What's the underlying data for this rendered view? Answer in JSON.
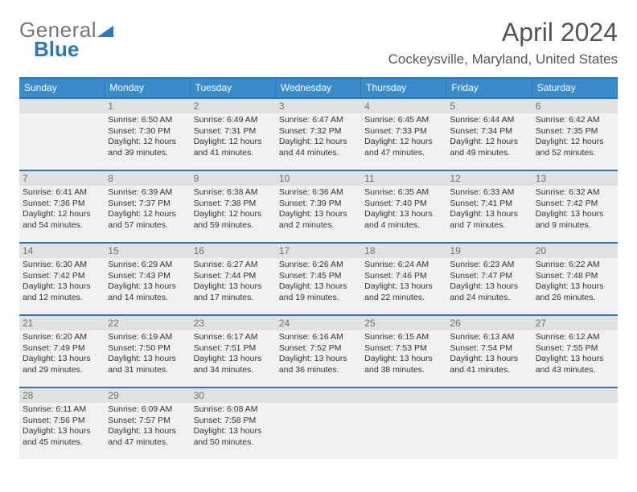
{
  "logo": {
    "part1": "General",
    "part2": "Blue"
  },
  "title": "April 2024",
  "subtitle": "Cockeysville, Maryland, United States",
  "colors": {
    "accent": "#2d77b8",
    "header_bg": "#3a8bc9",
    "cell_bg": "#f1f1f1",
    "num_bg": "#e1e1e1",
    "text": "#333333",
    "muted": "#707070"
  },
  "dayNames": [
    "Sunday",
    "Monday",
    "Tuesday",
    "Wednesday",
    "Thursday",
    "Friday",
    "Saturday"
  ],
  "firstWeekdayOffset": 1,
  "days": [
    {
      "n": 1,
      "sunrise": "6:50 AM",
      "sunset": "7:30 PM",
      "daylight": "12 hours and 39 minutes."
    },
    {
      "n": 2,
      "sunrise": "6:49 AM",
      "sunset": "7:31 PM",
      "daylight": "12 hours and 41 minutes."
    },
    {
      "n": 3,
      "sunrise": "6:47 AM",
      "sunset": "7:32 PM",
      "daylight": "12 hours and 44 minutes."
    },
    {
      "n": 4,
      "sunrise": "6:45 AM",
      "sunset": "7:33 PM",
      "daylight": "12 hours and 47 minutes."
    },
    {
      "n": 5,
      "sunrise": "6:44 AM",
      "sunset": "7:34 PM",
      "daylight": "12 hours and 49 minutes."
    },
    {
      "n": 6,
      "sunrise": "6:42 AM",
      "sunset": "7:35 PM",
      "daylight": "12 hours and 52 minutes."
    },
    {
      "n": 7,
      "sunrise": "6:41 AM",
      "sunset": "7:36 PM",
      "daylight": "12 hours and 54 minutes."
    },
    {
      "n": 8,
      "sunrise": "6:39 AM",
      "sunset": "7:37 PM",
      "daylight": "12 hours and 57 minutes."
    },
    {
      "n": 9,
      "sunrise": "6:38 AM",
      "sunset": "7:38 PM",
      "daylight": "12 hours and 59 minutes."
    },
    {
      "n": 10,
      "sunrise": "6:36 AM",
      "sunset": "7:39 PM",
      "daylight": "13 hours and 2 minutes."
    },
    {
      "n": 11,
      "sunrise": "6:35 AM",
      "sunset": "7:40 PM",
      "daylight": "13 hours and 4 minutes."
    },
    {
      "n": 12,
      "sunrise": "6:33 AM",
      "sunset": "7:41 PM",
      "daylight": "13 hours and 7 minutes."
    },
    {
      "n": 13,
      "sunrise": "6:32 AM",
      "sunset": "7:42 PM",
      "daylight": "13 hours and 9 minutes."
    },
    {
      "n": 14,
      "sunrise": "6:30 AM",
      "sunset": "7:42 PM",
      "daylight": "13 hours and 12 minutes."
    },
    {
      "n": 15,
      "sunrise": "6:29 AM",
      "sunset": "7:43 PM",
      "daylight": "13 hours and 14 minutes."
    },
    {
      "n": 16,
      "sunrise": "6:27 AM",
      "sunset": "7:44 PM",
      "daylight": "13 hours and 17 minutes."
    },
    {
      "n": 17,
      "sunrise": "6:26 AM",
      "sunset": "7:45 PM",
      "daylight": "13 hours and 19 minutes."
    },
    {
      "n": 18,
      "sunrise": "6:24 AM",
      "sunset": "7:46 PM",
      "daylight": "13 hours and 22 minutes."
    },
    {
      "n": 19,
      "sunrise": "6:23 AM",
      "sunset": "7:47 PM",
      "daylight": "13 hours and 24 minutes."
    },
    {
      "n": 20,
      "sunrise": "6:22 AM",
      "sunset": "7:48 PM",
      "daylight": "13 hours and 26 minutes."
    },
    {
      "n": 21,
      "sunrise": "6:20 AM",
      "sunset": "7:49 PM",
      "daylight": "13 hours and 29 minutes."
    },
    {
      "n": 22,
      "sunrise": "6:19 AM",
      "sunset": "7:50 PM",
      "daylight": "13 hours and 31 minutes."
    },
    {
      "n": 23,
      "sunrise": "6:17 AM",
      "sunset": "7:51 PM",
      "daylight": "13 hours and 34 minutes."
    },
    {
      "n": 24,
      "sunrise": "6:16 AM",
      "sunset": "7:52 PM",
      "daylight": "13 hours and 36 minutes."
    },
    {
      "n": 25,
      "sunrise": "6:15 AM",
      "sunset": "7:53 PM",
      "daylight": "13 hours and 38 minutes."
    },
    {
      "n": 26,
      "sunrise": "6:13 AM",
      "sunset": "7:54 PM",
      "daylight": "13 hours and 41 minutes."
    },
    {
      "n": 27,
      "sunrise": "6:12 AM",
      "sunset": "7:55 PM",
      "daylight": "13 hours and 43 minutes."
    },
    {
      "n": 28,
      "sunrise": "6:11 AM",
      "sunset": "7:56 PM",
      "daylight": "13 hours and 45 minutes."
    },
    {
      "n": 29,
      "sunrise": "6:09 AM",
      "sunset": "7:57 PM",
      "daylight": "13 hours and 47 minutes."
    },
    {
      "n": 30,
      "sunrise": "6:08 AM",
      "sunset": "7:58 PM",
      "daylight": "13 hours and 50 minutes."
    }
  ],
  "labels": {
    "sunrise": "Sunrise: ",
    "sunset": "Sunset: ",
    "daylight": "Daylight: "
  }
}
